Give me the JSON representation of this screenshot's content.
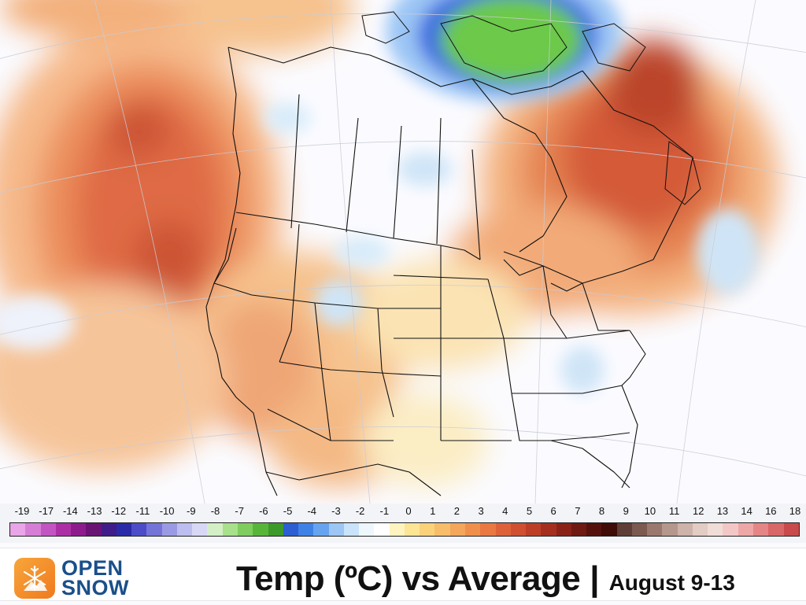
{
  "title": {
    "main": "Temp (ºC) vs Average",
    "separator": "|",
    "dates": "August 9-13"
  },
  "logo": {
    "line1": "OPEN",
    "line2": "SNOW",
    "icon": "snowflake-mountain-icon"
  },
  "legend": {
    "unit": "ºC",
    "ticks": [
      "-19",
      "-17",
      "-14",
      "-13",
      "-12",
      "-11",
      "-10",
      "-9",
      "-8",
      "-7",
      "-6",
      "-5",
      "-4",
      "-3",
      "-2",
      "-1",
      "0",
      "1",
      "2",
      "3",
      "4",
      "5",
      "6",
      "7",
      "8",
      "9",
      "10",
      "11",
      "12",
      "13",
      "14",
      "16",
      "18"
    ],
    "colors": [
      "#e8a6e8",
      "#d67ed6",
      "#c255c2",
      "#ad2fa6",
      "#8e1b8e",
      "#6b1275",
      "#3f1c8a",
      "#2a2aa8",
      "#4c4cc8",
      "#7474d8",
      "#9a9ae4",
      "#bdbdef",
      "#d8d8f6",
      "#d4efc6",
      "#a8e08c",
      "#7fcd5e",
      "#57b63a",
      "#3c9a2a",
      "#2d5fd3",
      "#3f82e6",
      "#66a4ef",
      "#9cc6f5",
      "#c9e3fa",
      "#eef7fe",
      "#ffffff",
      "#fff4c0",
      "#fde596",
      "#fbd27a",
      "#f7bd6a",
      "#f4a65a",
      "#f08f4c",
      "#ea7842",
      "#de6238",
      "#cf4f30",
      "#bd3e27",
      "#a42f1f",
      "#8b2218",
      "#6f1a13",
      "#55120c",
      "#3f0c08",
      "#5e3e36",
      "#7c5a50",
      "#9a786e",
      "#b6978d",
      "#cdb3aa",
      "#e2ccc4",
      "#f0ddd7",
      "#f4c7c7",
      "#eea7a7",
      "#e58686",
      "#da6767",
      "#c94a4a"
    ]
  },
  "map": {
    "region": "North America",
    "anomaly_colors": {
      "warm_strong": "#c44a2a",
      "warm": "#e0764c",
      "warm_mild": "#f4ad75",
      "neutral": "#fbfbff",
      "cool": "#cfe5f7",
      "cold": "#4a6fd8",
      "very_cold": "#5fc33d"
    }
  }
}
